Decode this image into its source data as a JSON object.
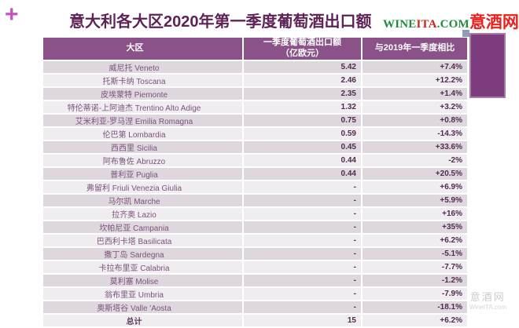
{
  "page": {
    "plus_glyph": "+",
    "title": "意大利各大区2020年第一季度葡萄酒出口额",
    "logo": {
      "wine": "WINE",
      "ita": "ITA",
      "com": ".COM",
      "site_cn": "意酒网"
    },
    "watermark": {
      "site_cn": "意酒网",
      "site_en": "WineITA.com"
    },
    "colors": {
      "header_bg": "#8A5289",
      "row_dark": "#DED8DE",
      "row_light": "#F0EDF1",
      "title_text": "#5E2257",
      "cell_text": "#7B527B",
      "value_text": "#512A4E",
      "accent_plus": "#C353BE",
      "logo_green": "#1F8B3B",
      "logo_red": "#D02318",
      "decor_rect": "#7C3C7E",
      "decor_square": "#8C9CBC"
    }
  },
  "table": {
    "headers": {
      "region": "大区",
      "export_line1": "一季度葡萄酒出口额",
      "export_line2": "（亿欧元）",
      "change": "与2019年一季度相比"
    },
    "rows": [
      {
        "cn": "威尼托",
        "it": "Veneto",
        "value": "5.42",
        "change": "+7.4%"
      },
      {
        "cn": "托斯卡纳",
        "it": "Toscana",
        "value": "2.46",
        "change": "+12.2%"
      },
      {
        "cn": "皮埃蒙特",
        "it": "Piemonte",
        "value": "2.35",
        "change": "+1.4%"
      },
      {
        "cn": "特伦蒂诺-上阿迪杰",
        "it": "Trentino Alto Adige",
        "value": "1.32",
        "change": "+3.2%"
      },
      {
        "cn": "艾米利亚-罗马涅",
        "it": "Emilia Romagna",
        "value": "0.75",
        "change": "+0.8%"
      },
      {
        "cn": "伦巴第",
        "it": "Lombardia",
        "value": "0.59",
        "change": "-14.3%"
      },
      {
        "cn": "西西里",
        "it": "Sicilia",
        "value": "0.45",
        "change": "+33.6%"
      },
      {
        "cn": "阿布鲁佐",
        "it": "Abruzzo",
        "value": "0.44",
        "change": "-2%"
      },
      {
        "cn": "普利亚",
        "it": "Puglia",
        "value": "0.44",
        "change": "+20.5%"
      },
      {
        "cn": "弗留利",
        "it": "Friuli Venezia Giulia",
        "value": "-",
        "change": "+6.9%"
      },
      {
        "cn": "马尔凯",
        "it": "Marche",
        "value": "-",
        "change": "+5.9%"
      },
      {
        "cn": "拉齐奥",
        "it": "Lazio",
        "value": "-",
        "change": "+16%"
      },
      {
        "cn": "坎帕尼亚",
        "it": "Campania",
        "value": "-",
        "change": "+35%"
      },
      {
        "cn": "巴西利卡塔",
        "it": "Basilicata",
        "value": "-",
        "change": "+6.2%"
      },
      {
        "cn": "撒丁岛",
        "it": "Sardegna",
        "value": "-",
        "change": "-5.1%"
      },
      {
        "cn": "卡拉布里亚",
        "it": "Calabria",
        "value": "-",
        "change": "-7.7%"
      },
      {
        "cn": "莫利塞",
        "it": "Molise",
        "value": "-",
        "change": "-1.2%"
      },
      {
        "cn": "翁布里亚",
        "it": "Umbria",
        "value": "-",
        "change": "-7.9%"
      },
      {
        "cn": "奥斯塔谷",
        "it": "Valle 'Aosta",
        "value": "-",
        "change": "-18.1%"
      },
      {
        "cn": "总计",
        "it": "",
        "value": "15",
        "change": "+6.2%",
        "total": true
      }
    ]
  },
  "chart_data": {
    "type": "table",
    "title": "意大利各大区2020年第一季度葡萄酒出口额",
    "columns": [
      "大区",
      "一季度葡萄酒出口额（亿欧元）",
      "与2019年一季度相比"
    ],
    "rows": [
      [
        "威尼托 Veneto",
        5.42,
        "+7.4%"
      ],
      [
        "托斯卡纳 Toscana",
        2.46,
        "+12.2%"
      ],
      [
        "皮埃蒙特 Piemonte",
        2.35,
        "+1.4%"
      ],
      [
        "特伦蒂诺-上阿迪杰 Trentino Alto Adige",
        1.32,
        "+3.2%"
      ],
      [
        "艾米利亚-罗马涅 Emilia Romagna",
        0.75,
        "+0.8%"
      ],
      [
        "伦巴第 Lombardia",
        0.59,
        "-14.3%"
      ],
      [
        "西西里 Sicilia",
        0.45,
        "+33.6%"
      ],
      [
        "阿布鲁佐 Abruzzo",
        0.44,
        "-2%"
      ],
      [
        "普利亚 Puglia",
        0.44,
        "+20.5%"
      ],
      [
        "弗留利 Friuli Venezia Giulia",
        "-",
        "+6.9%"
      ],
      [
        "马尔凯 Marche",
        "-",
        "+5.9%"
      ],
      [
        "拉齐奥 Lazio",
        "-",
        "+16%"
      ],
      [
        "坎帕尼亚 Campania",
        "-",
        "+35%"
      ],
      [
        "巴西利卡塔 Basilicata",
        "-",
        "+6.2%"
      ],
      [
        "撒丁岛 Sardegna",
        "-",
        "-5.1%"
      ],
      [
        "卡拉布里亚 Calabria",
        "-",
        "-7.7%"
      ],
      [
        "莫利塞 Molise",
        "-",
        "-1.2%"
      ],
      [
        "翁布里亚 Umbria",
        "-",
        "-7.9%"
      ],
      [
        "奥斯塔谷 Valle 'Aosta",
        "-",
        "-18.1%"
      ],
      [
        "总计",
        15,
        "+6.2%"
      ]
    ]
  }
}
